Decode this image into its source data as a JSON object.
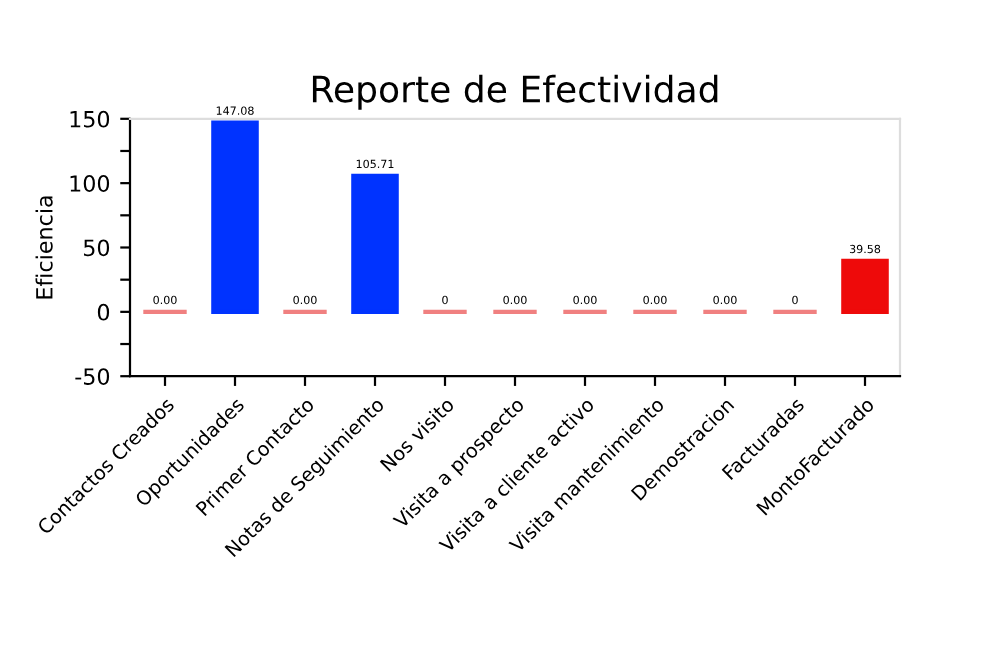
{
  "chart_data": {
    "type": "bar",
    "title": "Reporte de Efectividad",
    "ylabel": "Eficiencia",
    "categories": [
      "Contactos Creados",
      "Oportunidades",
      "Primer Contacto",
      "Notas de Seguimiento",
      "Nos visito",
      "Visita a prospecto",
      "Visita a cliente activo",
      "Visita mantenimiento",
      "Demostracion",
      "Facturadas",
      "MontoFacturado"
    ],
    "values": [
      0,
      147.08,
      0,
      105.71,
      0,
      0,
      0,
      0,
      0,
      0,
      39.58
    ],
    "colors": [
      "#f08080",
      "#0033ff",
      "#f08080",
      "#0033ff",
      "#f08080",
      "#f08080",
      "#f08080",
      "#f08080",
      "#f08080",
      "#f08080",
      "#ee0a0a"
    ],
    "value_labels": [
      "0.00",
      "147.08",
      "0.00",
      "105.71",
      "0",
      "0.00",
      "0.00",
      "0.00",
      "0.00",
      "0",
      "39.58"
    ],
    "ylim": [
      -50,
      150
    ],
    "yticks": [
      -50,
      {
        "value": -25,
        "label": null
      },
      0,
      {
        "value": 25,
        "label": null
      },
      50,
      {
        "value": 75,
        "label": null
      },
      100,
      {
        "value": 125,
        "label": null
      },
      150
    ],
    "grid": false,
    "legend": false
  }
}
